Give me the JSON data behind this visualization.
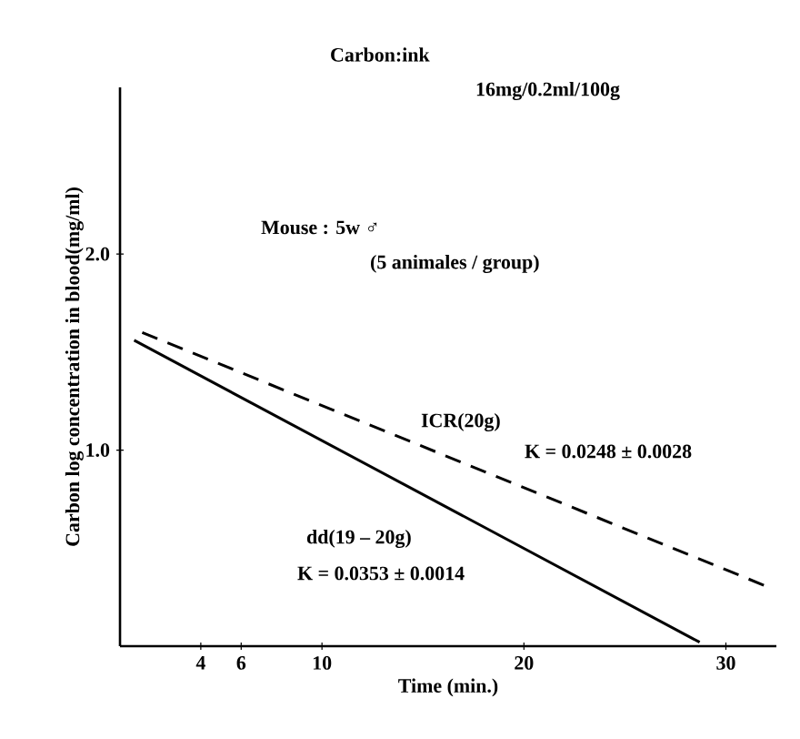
{
  "chart_data": {
    "type": "line",
    "xlabel": "Time (min.)",
    "ylabel": "Carbon log concentration in blood(mg/ml)",
    "xlim": [
      0,
      32.5
    ],
    "ylim": [
      0,
      2.85
    ],
    "xticks": [
      4,
      6,
      10,
      20,
      30
    ],
    "yticks": [
      {
        "value": 1,
        "label": "1.0"
      },
      {
        "value": 2,
        "label": "2.0"
      }
    ],
    "series": [
      {
        "name": "ICR(20g)",
        "color": "#000000",
        "line_style": "dashed",
        "x": [
          1.1,
          31.9
        ],
        "values": [
          1.6,
          0.31
        ]
      },
      {
        "name": "dd(19 – 20g)",
        "color": "#000000",
        "line_style": "solid",
        "x": [
          0.7,
          28.7
        ],
        "values": [
          1.56,
          0.02
        ]
      }
    ],
    "annotations": [
      "Carbon:ink",
      "16mg/0.2ml/100g",
      "Mouse : 5w ♂",
      "(5 animales / group)",
      "K = 0.0248 ± 0.0028",
      "K = 0.0353 ± 0.0014"
    ]
  }
}
